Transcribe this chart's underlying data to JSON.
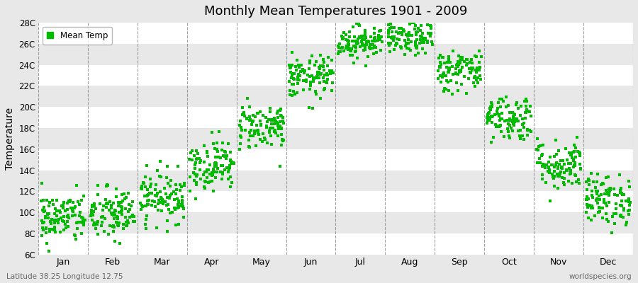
{
  "title": "Monthly Mean Temperatures 1901 - 2009",
  "ylabel": "Temperature",
  "bottom_left": "Latitude 38.25 Longitude 12.75",
  "bottom_right": "worldspecies.org",
  "legend_label": "Mean Temp",
  "marker_color": "#00bb00",
  "bg_color": "#e8e8e8",
  "white_band_color": "#f0f0f0",
  "ylim": [
    6,
    28
  ],
  "ytick_labels": [
    "6C",
    "8C",
    "10C",
    "12C",
    "14C",
    "16C",
    "18C",
    "20C",
    "22C",
    "24C",
    "26C",
    "28C"
  ],
  "ytick_values": [
    6,
    8,
    10,
    12,
    14,
    16,
    18,
    20,
    22,
    24,
    26,
    28
  ],
  "month_names": [
    "Jan",
    "Feb",
    "Mar",
    "Apr",
    "May",
    "Jun",
    "Jul",
    "Aug",
    "Sep",
    "Oct",
    "Nov",
    "Dec"
  ],
  "mean_temps": [
    9.5,
    9.8,
    11.5,
    14.5,
    18.2,
    22.8,
    26.2,
    26.5,
    23.5,
    19.0,
    14.5,
    11.2
  ],
  "std_temps": [
    1.2,
    1.3,
    1.2,
    1.2,
    1.1,
    1.0,
    0.8,
    0.8,
    1.0,
    1.1,
    1.2,
    1.2
  ],
  "n_years": 109,
  "seed": 42,
  "figsize": [
    9.0,
    4.0
  ],
  "dpi": 100
}
